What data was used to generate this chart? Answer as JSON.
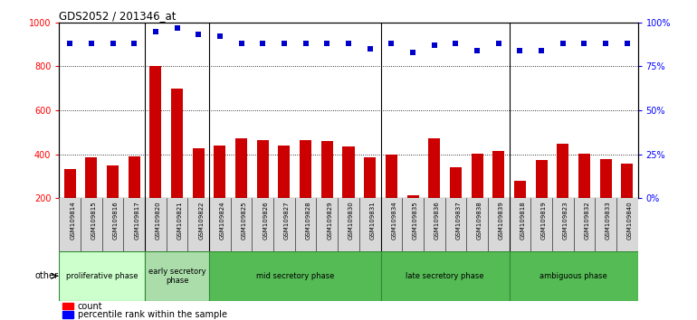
{
  "title": "GDS2052 / 201346_at",
  "samples": [
    "GSM109814",
    "GSM109815",
    "GSM109816",
    "GSM109817",
    "GSM109820",
    "GSM109821",
    "GSM109822",
    "GSM109824",
    "GSM109825",
    "GSM109826",
    "GSM109827",
    "GSM109828",
    "GSM109829",
    "GSM109830",
    "GSM109831",
    "GSM109834",
    "GSM109835",
    "GSM109836",
    "GSM109837",
    "GSM109838",
    "GSM109839",
    "GSM109818",
    "GSM109819",
    "GSM109823",
    "GSM109832",
    "GSM109833",
    "GSM109840"
  ],
  "counts": [
    335,
    385,
    350,
    390,
    800,
    700,
    430,
    440,
    475,
    465,
    440,
    465,
    460,
    435,
    385,
    400,
    215,
    475,
    340,
    405,
    415,
    280,
    375,
    450,
    405,
    380,
    360
  ],
  "percentile_ranks": [
    88,
    88,
    88,
    88,
    95,
    97,
    93,
    92,
    88,
    88,
    88,
    88,
    88,
    88,
    85,
    88,
    83,
    87,
    88,
    84,
    88,
    84,
    84,
    88,
    88,
    88,
    88
  ],
  "phases_info": [
    {
      "label": "proliferative phase",
      "start": 0,
      "end": 4,
      "color": "#ccffcc"
    },
    {
      "label": "early secretory\nphase",
      "start": 4,
      "end": 7,
      "color": "#aaddaa"
    },
    {
      "label": "mid secretory phase",
      "start": 7,
      "end": 15,
      "color": "#55bb55"
    },
    {
      "label": "late secretory phase",
      "start": 15,
      "end": 21,
      "color": "#55bb55"
    },
    {
      "label": "ambiguous phase",
      "start": 21,
      "end": 27,
      "color": "#55bb55"
    }
  ],
  "bar_color": "#cc0000",
  "dot_color": "#0000cc",
  "ymin": 200,
  "ymax": 1000,
  "ylim_right": [
    0,
    100
  ],
  "yticks_left": [
    200,
    400,
    600,
    800,
    1000
  ],
  "yticks_right": [
    0,
    25,
    50,
    75,
    100
  ],
  "grid_values": [
    400,
    600,
    800
  ],
  "phase_boundaries": [
    4,
    7,
    15,
    21
  ],
  "bg_color": "#ffffff"
}
